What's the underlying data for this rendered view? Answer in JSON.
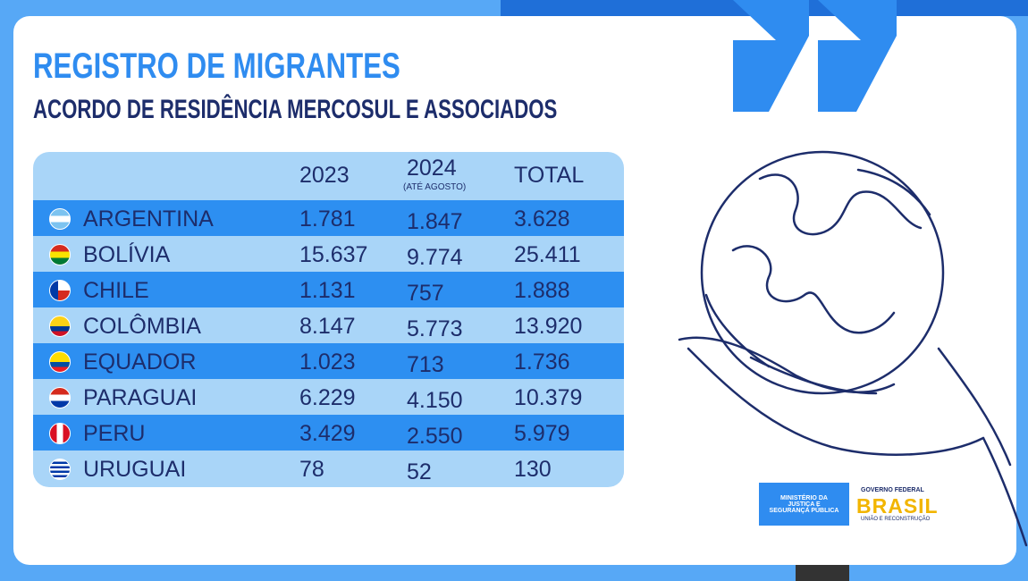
{
  "header": {
    "title": "REGISTRO DE MIGRANTES",
    "subtitle": "ACORDO DE RESIDÊNCIA MERCOSUL E ASSOCIADOS"
  },
  "table": {
    "columns": [
      "2023",
      "2024",
      "TOTAL"
    ],
    "column_note": "(ATÉ AGOSTO)",
    "rows": [
      [
        "ARGENTINA",
        "1.781",
        "1.847",
        "3.628"
      ],
      [
        "BOLÍVIA",
        "15.637",
        "9.774",
        "25.411"
      ],
      [
        "CHILE",
        "1.131",
        "757",
        "1.888"
      ],
      [
        "COLÔMBIA",
        "8.147",
        "5.773",
        "13.920"
      ],
      [
        "EQUADOR",
        "1.023",
        "713",
        "1.736"
      ],
      [
        "PARAGUAI",
        "6.229",
        "4.150",
        "10.379"
      ],
      [
        "PERU",
        "3.429",
        "2.550",
        "5.979"
      ],
      [
        "URUGUAI",
        "78",
        "52",
        "130"
      ]
    ]
  },
  "logos": {
    "ministry": "MINISTÉRIO DA JUSTIÇA E SEGURANÇA PÚBLICA",
    "gov_top": "GOVERNO FEDERAL",
    "gov_name": "BRASIL",
    "gov_bottom": "UNIÃO E RECONSTRUÇÃO"
  }
}
